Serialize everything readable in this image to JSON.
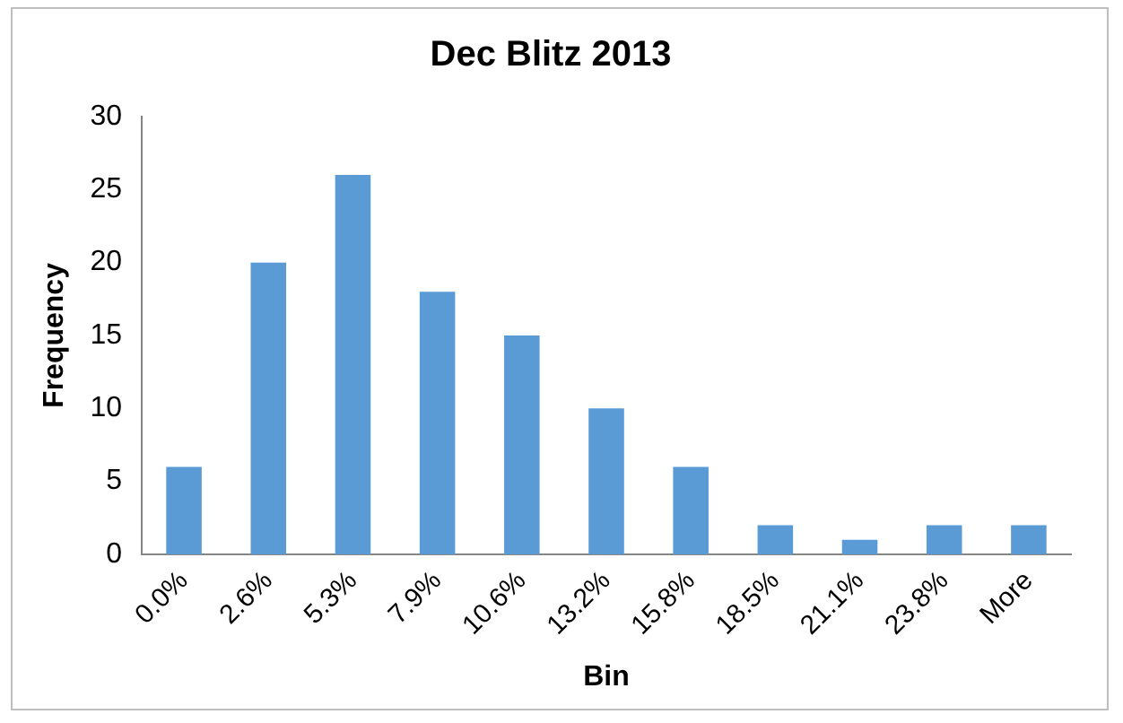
{
  "chart_data": {
    "type": "bar",
    "title": "Dec Blitz 2013",
    "xlabel": "Bin",
    "ylabel": "Frequency",
    "categories": [
      "0.0%",
      "2.6%",
      "5.3%",
      "7.9%",
      "10.6%",
      "13.2%",
      "15.8%",
      "18.5%",
      "21.1%",
      "23.8%",
      "More"
    ],
    "values": [
      6,
      20,
      26,
      18,
      15,
      10,
      6,
      2,
      1,
      2,
      2
    ],
    "color": "#5b9bd5",
    "ylim": [
      0,
      30
    ],
    "yticks": [
      0,
      5,
      10,
      15,
      20,
      25,
      30
    ],
    "grid": false,
    "legend": false
  }
}
